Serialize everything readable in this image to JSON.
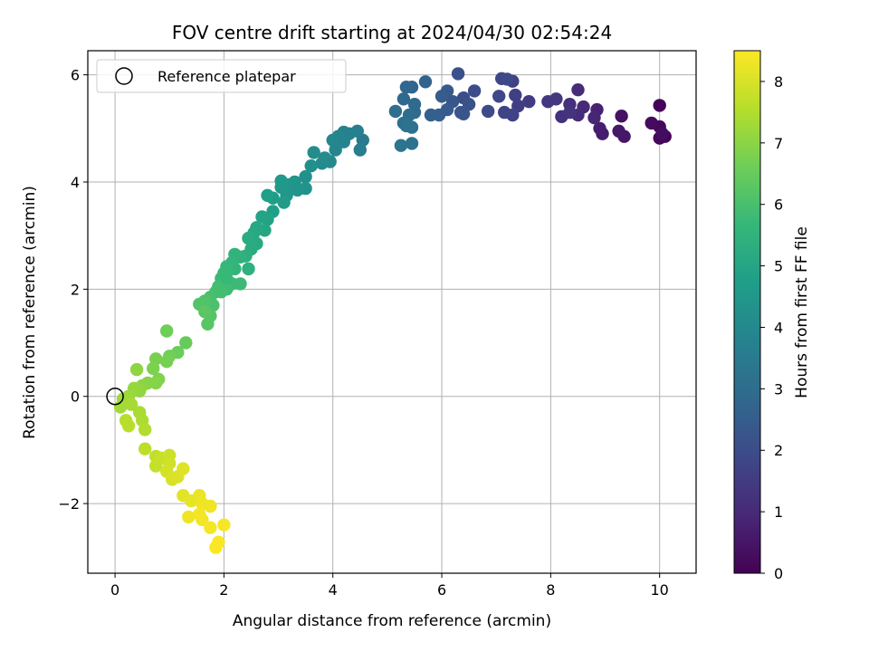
{
  "chart_data": {
    "type": "scatter",
    "title": "FOV centre drift starting at 2024/04/30 02:54:24",
    "xlabel": "Angular distance from reference (arcmin)",
    "ylabel": "Rotation from reference (arcmin)",
    "xlim": [
      -0.5,
      10.67
    ],
    "ylim": [
      -3.3,
      6.45
    ],
    "xticks": [
      0,
      2,
      4,
      6,
      8,
      10
    ],
    "yticks": [
      -2,
      0,
      2,
      4,
      6
    ],
    "ytick_labels": [
      "−2",
      "0",
      "2",
      "4",
      "6"
    ],
    "grid": true,
    "legend": {
      "position": "top-left",
      "entries": [
        "Reference platepar"
      ]
    },
    "reference_point": {
      "x": 0,
      "y": 0,
      "marker": "hollow-circle",
      "color": "#000000"
    },
    "colorbar": {
      "label": "Hours from first FF file",
      "min": 0,
      "max": 8.5,
      "ticks": [
        0,
        1,
        2,
        3,
        4,
        5,
        6,
        7,
        8
      ],
      "colormap": "viridis",
      "stops": [
        "#440154",
        "#482878",
        "#3e4989",
        "#31688e",
        "#26828e",
        "#1f9e89",
        "#35b779",
        "#6ece58",
        "#b5de2b",
        "#fde725"
      ]
    },
    "points": [
      {
        "x": 10.0,
        "y": 5.43,
        "h": 0.05
      },
      {
        "x": 10.1,
        "y": 4.85,
        "h": 0.1
      },
      {
        "x": 10.0,
        "y": 4.82,
        "h": 0.15
      },
      {
        "x": 10.0,
        "y": 5.03,
        "h": 0.2
      },
      {
        "x": 9.85,
        "y": 5.1,
        "h": 0.25
      },
      {
        "x": 10.05,
        "y": 4.9,
        "h": 0.3
      },
      {
        "x": 9.3,
        "y": 5.23,
        "h": 0.4
      },
      {
        "x": 9.35,
        "y": 4.85,
        "h": 0.5
      },
      {
        "x": 9.25,
        "y": 4.95,
        "h": 0.55
      },
      {
        "x": 8.95,
        "y": 4.9,
        "h": 0.65
      },
      {
        "x": 8.9,
        "y": 5.0,
        "h": 0.7
      },
      {
        "x": 8.85,
        "y": 5.35,
        "h": 0.8
      },
      {
        "x": 8.8,
        "y": 5.2,
        "h": 0.9
      },
      {
        "x": 8.6,
        "y": 5.4,
        "h": 0.95
      },
      {
        "x": 8.5,
        "y": 5.72,
        "h": 1.05
      },
      {
        "x": 8.5,
        "y": 5.25,
        "h": 1.1
      },
      {
        "x": 8.35,
        "y": 5.45,
        "h": 1.15
      },
      {
        "x": 8.2,
        "y": 5.22,
        "h": 1.2
      },
      {
        "x": 8.35,
        "y": 5.3,
        "h": 1.25
      },
      {
        "x": 8.1,
        "y": 5.55,
        "h": 1.35
      },
      {
        "x": 7.95,
        "y": 5.5,
        "h": 1.4
      },
      {
        "x": 7.6,
        "y": 5.5,
        "h": 1.5
      },
      {
        "x": 7.4,
        "y": 5.42,
        "h": 1.55
      },
      {
        "x": 7.35,
        "y": 5.62,
        "h": 1.6
      },
      {
        "x": 7.3,
        "y": 5.88,
        "h": 1.65
      },
      {
        "x": 7.3,
        "y": 5.25,
        "h": 1.7
      },
      {
        "x": 7.15,
        "y": 5.3,
        "h": 1.75
      },
      {
        "x": 7.1,
        "y": 5.93,
        "h": 1.8
      },
      {
        "x": 7.05,
        "y": 5.6,
        "h": 1.85
      },
      {
        "x": 7.2,
        "y": 5.92,
        "h": 1.9
      },
      {
        "x": 6.85,
        "y": 5.32,
        "h": 1.95
      },
      {
        "x": 6.6,
        "y": 5.7,
        "h": 2.0
      },
      {
        "x": 6.4,
        "y": 5.57,
        "h": 2.05
      },
      {
        "x": 6.3,
        "y": 6.02,
        "h": 2.1
      },
      {
        "x": 6.35,
        "y": 5.3,
        "h": 2.2
      },
      {
        "x": 6.2,
        "y": 5.5,
        "h": 2.3
      },
      {
        "x": 6.1,
        "y": 5.7,
        "h": 2.4
      },
      {
        "x": 6.0,
        "y": 5.6,
        "h": 2.5
      },
      {
        "x": 5.95,
        "y": 5.25,
        "h": 2.55
      },
      {
        "x": 5.8,
        "y": 5.25,
        "h": 2.6
      },
      {
        "x": 5.7,
        "y": 5.87,
        "h": 2.7
      },
      {
        "x": 5.45,
        "y": 5.77,
        "h": 2.75
      },
      {
        "x": 5.35,
        "y": 5.77,
        "h": 2.8
      },
      {
        "x": 5.3,
        "y": 5.55,
        "h": 2.85
      },
      {
        "x": 5.5,
        "y": 5.45,
        "h": 2.9
      },
      {
        "x": 5.5,
        "y": 5.3,
        "h": 2.95
      },
      {
        "x": 5.4,
        "y": 5.25,
        "h": 3.0
      },
      {
        "x": 5.15,
        "y": 5.32,
        "h": 3.05
      },
      {
        "x": 5.3,
        "y": 5.1,
        "h": 3.1
      },
      {
        "x": 5.45,
        "y": 5.02,
        "h": 3.15
      },
      {
        "x": 5.35,
        "y": 5.05,
        "h": 3.2
      },
      {
        "x": 5.45,
        "y": 4.72,
        "h": 3.25
      },
      {
        "x": 5.25,
        "y": 4.68,
        "h": 3.3
      },
      {
        "x": 6.4,
        "y": 5.27,
        "h": 2.25
      },
      {
        "x": 6.1,
        "y": 5.35,
        "h": 2.45
      },
      {
        "x": 6.5,
        "y": 5.45,
        "h": 2.15
      },
      {
        "x": 4.55,
        "y": 4.78,
        "h": 3.5
      },
      {
        "x": 4.5,
        "y": 4.6,
        "h": 3.6
      },
      {
        "x": 4.45,
        "y": 4.95,
        "h": 3.65
      },
      {
        "x": 4.3,
        "y": 4.9,
        "h": 3.7
      },
      {
        "x": 4.2,
        "y": 4.93,
        "h": 3.75
      },
      {
        "x": 4.2,
        "y": 4.75,
        "h": 3.8
      },
      {
        "x": 4.1,
        "y": 4.85,
        "h": 3.85
      },
      {
        "x": 4.0,
        "y": 4.78,
        "h": 3.9
      },
      {
        "x": 4.05,
        "y": 4.6,
        "h": 3.95
      },
      {
        "x": 3.95,
        "y": 4.38,
        "h": 4.0
      },
      {
        "x": 3.8,
        "y": 4.35,
        "h": 4.05
      },
      {
        "x": 3.85,
        "y": 4.45,
        "h": 4.1
      },
      {
        "x": 3.65,
        "y": 4.55,
        "h": 4.15
      },
      {
        "x": 3.6,
        "y": 4.3,
        "h": 4.2
      },
      {
        "x": 3.5,
        "y": 4.1,
        "h": 4.3
      },
      {
        "x": 3.5,
        "y": 3.88,
        "h": 4.35
      },
      {
        "x": 3.3,
        "y": 4.0,
        "h": 4.4
      },
      {
        "x": 3.2,
        "y": 3.95,
        "h": 4.45
      },
      {
        "x": 3.15,
        "y": 3.75,
        "h": 4.5
      },
      {
        "x": 3.05,
        "y": 3.9,
        "h": 4.55
      },
      {
        "x": 3.05,
        "y": 4.02,
        "h": 4.6
      },
      {
        "x": 3.1,
        "y": 3.62,
        "h": 4.65
      },
      {
        "x": 2.9,
        "y": 3.7,
        "h": 4.7
      },
      {
        "x": 2.8,
        "y": 3.75,
        "h": 4.75
      },
      {
        "x": 2.9,
        "y": 3.45,
        "h": 4.8
      },
      {
        "x": 2.8,
        "y": 3.3,
        "h": 4.9
      },
      {
        "x": 2.7,
        "y": 3.35,
        "h": 4.95
      },
      {
        "x": 2.75,
        "y": 3.1,
        "h": 5.0
      },
      {
        "x": 2.6,
        "y": 3.15,
        "h": 5.05
      },
      {
        "x": 2.55,
        "y": 3.05,
        "h": 5.1
      },
      {
        "x": 2.6,
        "y": 2.85,
        "h": 5.15
      },
      {
        "x": 2.45,
        "y": 2.95,
        "h": 5.2
      },
      {
        "x": 2.5,
        "y": 2.75,
        "h": 5.25
      },
      {
        "x": 2.4,
        "y": 2.62,
        "h": 5.35
      },
      {
        "x": 2.45,
        "y": 2.38,
        "h": 5.4
      },
      {
        "x": 2.3,
        "y": 2.6,
        "h": 5.45
      },
      {
        "x": 2.2,
        "y": 2.65,
        "h": 5.5
      },
      {
        "x": 2.15,
        "y": 2.5,
        "h": 5.55
      },
      {
        "x": 2.2,
        "y": 2.38,
        "h": 5.6
      },
      {
        "x": 2.05,
        "y": 2.42,
        "h": 5.65
      },
      {
        "x": 2.0,
        "y": 2.3,
        "h": 5.7
      },
      {
        "x": 1.95,
        "y": 2.2,
        "h": 5.75
      },
      {
        "x": 2.15,
        "y": 2.1,
        "h": 5.8
      },
      {
        "x": 2.05,
        "y": 2.0,
        "h": 5.85
      },
      {
        "x": 1.9,
        "y": 2.05,
        "h": 5.9
      },
      {
        "x": 1.85,
        "y": 1.95,
        "h": 5.95
      },
      {
        "x": 1.75,
        "y": 1.85,
        "h": 6.0
      },
      {
        "x": 1.8,
        "y": 1.7,
        "h": 6.05
      },
      {
        "x": 1.65,
        "y": 1.78,
        "h": 6.1
      },
      {
        "x": 1.55,
        "y": 1.72,
        "h": 6.15
      },
      {
        "x": 1.75,
        "y": 1.5,
        "h": 6.2
      },
      {
        "x": 1.7,
        "y": 1.35,
        "h": 6.25
      },
      {
        "x": 1.65,
        "y": 1.58,
        "h": 6.3
      },
      {
        "x": 1.95,
        "y": 1.95,
        "h": 5.92
      },
      {
        "x": 2.3,
        "y": 2.1,
        "h": 5.78
      },
      {
        "x": 3.35,
        "y": 3.85,
        "h": 4.42
      },
      {
        "x": 2.05,
        "y": 2.2,
        "h": 5.72
      },
      {
        "x": 1.3,
        "y": 1.0,
        "h": 6.5
      },
      {
        "x": 1.15,
        "y": 0.82,
        "h": 6.55
      },
      {
        "x": 0.95,
        "y": 1.22,
        "h": 6.6
      },
      {
        "x": 1.0,
        "y": 0.75,
        "h": 6.65
      },
      {
        "x": 0.95,
        "y": 0.65,
        "h": 6.7
      },
      {
        "x": 0.75,
        "y": 0.7,
        "h": 6.75
      },
      {
        "x": 0.7,
        "y": 0.52,
        "h": 6.8
      },
      {
        "x": 0.8,
        "y": 0.32,
        "h": 6.85
      },
      {
        "x": 0.75,
        "y": 0.25,
        "h": 6.9
      },
      {
        "x": 0.6,
        "y": 0.25,
        "h": 6.95
      },
      {
        "x": 0.5,
        "y": 0.2,
        "h": 7.0
      },
      {
        "x": 0.4,
        "y": 0.5,
        "h": 7.05
      },
      {
        "x": 0.45,
        "y": 0.1,
        "h": 7.1
      },
      {
        "x": 0.35,
        "y": 0.15,
        "h": 7.15
      },
      {
        "x": 0.25,
        "y": 0.0,
        "h": 7.2
      },
      {
        "x": 0.15,
        "y": -0.05,
        "h": 7.25
      },
      {
        "x": 0.1,
        "y": -0.2,
        "h": 7.3
      },
      {
        "x": 0.3,
        "y": -0.15,
        "h": 7.35
      },
      {
        "x": 0.45,
        "y": -0.3,
        "h": 7.4
      },
      {
        "x": 0.5,
        "y": -0.45,
        "h": 7.45
      },
      {
        "x": 0.55,
        "y": -0.62,
        "h": 7.5
      },
      {
        "x": 0.2,
        "y": -0.45,
        "h": 7.55
      },
      {
        "x": 0.25,
        "y": -0.55,
        "h": 7.6
      },
      {
        "x": 0.55,
        "y": -0.98,
        "h": 7.65
      },
      {
        "x": 0.75,
        "y": -1.12,
        "h": 7.7
      },
      {
        "x": 0.75,
        "y": -1.3,
        "h": 7.75
      },
      {
        "x": 0.85,
        "y": -1.15,
        "h": 7.8
      },
      {
        "x": 1.0,
        "y": -1.1,
        "h": 7.85
      },
      {
        "x": 1.0,
        "y": -1.25,
        "h": 7.9
      },
      {
        "x": 0.95,
        "y": -1.4,
        "h": 7.95
      },
      {
        "x": 1.05,
        "y": -1.55,
        "h": 8.0
      },
      {
        "x": 1.15,
        "y": -1.5,
        "h": 8.05
      },
      {
        "x": 1.25,
        "y": -1.35,
        "h": 8.1
      },
      {
        "x": 1.25,
        "y": -1.85,
        "h": 8.15
      },
      {
        "x": 1.4,
        "y": -1.95,
        "h": 8.2
      },
      {
        "x": 1.55,
        "y": -1.85,
        "h": 8.25
      },
      {
        "x": 1.6,
        "y": -2.0,
        "h": 8.3
      },
      {
        "x": 1.35,
        "y": -2.25,
        "h": 8.32
      },
      {
        "x": 1.6,
        "y": -2.3,
        "h": 8.35
      },
      {
        "x": 1.55,
        "y": -2.2,
        "h": 8.38
      },
      {
        "x": 1.75,
        "y": -2.45,
        "h": 8.4
      },
      {
        "x": 2.0,
        "y": -2.4,
        "h": 8.42
      },
      {
        "x": 1.9,
        "y": -2.72,
        "h": 8.45
      },
      {
        "x": 1.85,
        "y": -2.82,
        "h": 8.48
      },
      {
        "x": 1.75,
        "y": -2.05,
        "h": 8.3
      }
    ]
  }
}
